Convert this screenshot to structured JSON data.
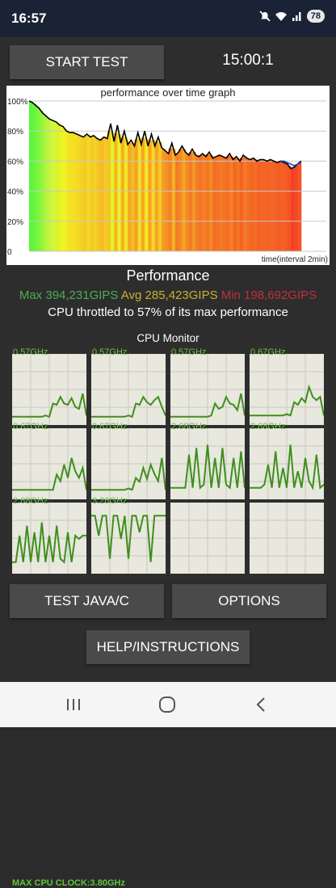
{
  "status_bar": {
    "time": "16:57",
    "battery": "78",
    "icons": [
      "mute-icon",
      "wifi-icon",
      "signal-icon",
      "battery-icon"
    ]
  },
  "controls": {
    "start_label": "START TEST",
    "timer": "15:00:1",
    "test_java_label": "TEST JAVA/C",
    "options_label": "OPTIONS",
    "help_label": "HELP/INSTRUCTIONS"
  },
  "performance": {
    "title": "Performance",
    "max": "Max 394,231GIPS",
    "avg": "Avg 285,423GIPS",
    "min": "Min 198,692GIPS",
    "throttle": "CPU throttled to 57% of its max performance"
  },
  "cpu_monitor": {
    "title": "CPU Monitor",
    "max_clock": "MAX CPU CLOCK:3.80GHz",
    "cores": [
      {
        "freq": "0.57GHz",
        "samples": [
          10,
          10,
          10,
          10,
          10,
          10,
          10,
          10,
          10,
          12,
          10,
          30,
          28,
          40,
          30,
          28,
          38,
          25,
          22,
          45,
          12
        ]
      },
      {
        "freq": "0.57GHz",
        "samples": [
          10,
          10,
          10,
          10,
          10,
          10,
          10,
          10,
          10,
          10,
          12,
          10,
          30,
          28,
          40,
          32,
          28,
          35,
          40,
          25,
          12
        ]
      },
      {
        "freq": "0.57GHz",
        "samples": [
          10,
          10,
          10,
          10,
          10,
          10,
          10,
          10,
          10,
          10,
          10,
          12,
          30,
          22,
          25,
          40,
          30,
          28,
          20,
          45,
          12
        ]
      },
      {
        "freq": "0.67GHz",
        "samples": [
          12,
          12,
          12,
          12,
          12,
          12,
          12,
          12,
          12,
          12,
          14,
          12,
          32,
          28,
          38,
          32,
          55,
          40,
          35,
          40,
          12
        ]
      },
      {
        "freq": "0.67GHz",
        "samples": [
          12,
          12,
          12,
          12,
          12,
          12,
          12,
          12,
          12,
          12,
          12,
          12,
          35,
          25,
          50,
          30,
          60,
          40,
          30,
          45,
          12
        ]
      },
      {
        "freq": "0.67GHz",
        "samples": [
          12,
          12,
          12,
          12,
          12,
          12,
          12,
          12,
          12,
          12,
          14,
          12,
          30,
          24,
          45,
          28,
          50,
          36,
          25,
          60,
          12
        ]
      },
      {
        "freq": "2.68GHz",
        "samples": [
          15,
          15,
          15,
          15,
          15,
          65,
          15,
          75,
          15,
          20,
          80,
          15,
          60,
          15,
          75,
          20,
          15,
          60,
          15,
          70,
          15
        ]
      },
      {
        "freq": "2.68GHz",
        "samples": [
          15,
          15,
          15,
          15,
          20,
          50,
          15,
          70,
          15,
          45,
          15,
          80,
          15,
          40,
          15,
          60,
          25,
          15,
          65,
          15,
          20
        ]
      },
      {
        "freq": "2.68GHz",
        "samples": [
          15,
          15,
          55,
          15,
          70,
          15,
          60,
          15,
          75,
          15,
          55,
          15,
          70,
          20,
          15,
          60,
          15,
          55,
          50,
          55,
          55
        ]
      },
      {
        "freq": "3.26GHz",
        "samples": [
          85,
          85,
          55,
          85,
          85,
          20,
          85,
          85,
          50,
          85,
          20,
          85,
          85,
          60,
          85,
          85,
          15,
          85,
          85,
          85,
          85
        ]
      },
      {
        "freq": "",
        "samples": []
      },
      {
        "freq": "",
        "samples": []
      }
    ]
  },
  "chart_data": {
    "type": "area",
    "title": "performance over time graph",
    "xlabel": "time(interval 2min)",
    "ylabel": "",
    "ylim": [
      0,
      100
    ],
    "yticks": [
      "100%",
      "80%",
      "60%",
      "40%",
      "20%",
      "0"
    ],
    "series": [
      {
        "values": [
          100,
          99,
          97,
          95,
          92,
          90,
          88,
          87,
          86,
          84,
          83,
          80,
          79,
          79,
          78,
          77,
          76,
          78,
          76,
          77,
          75,
          74,
          76,
          75,
          85,
          73,
          84,
          72,
          80,
          71,
          74,
          70,
          79,
          71,
          80,
          70,
          78,
          70,
          76,
          69,
          67,
          65,
          72,
          64,
          66,
          70,
          66,
          64,
          68,
          64,
          63,
          65,
          63,
          66,
          62,
          63,
          64,
          63,
          62,
          65,
          61,
          63,
          60,
          64,
          62,
          61,
          62,
          60,
          61,
          61,
          60,
          61,
          60,
          59,
          60,
          59,
          58,
          55,
          56,
          58,
          60
        ]
      },
      {
        "values": [
          60,
          60,
          59,
          58,
          57,
          58,
          59
        ]
      }
    ]
  }
}
